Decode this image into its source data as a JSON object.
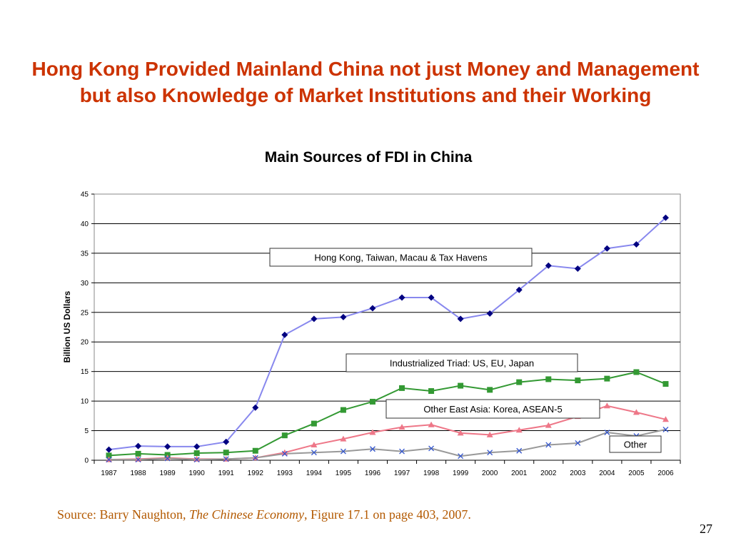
{
  "slide": {
    "title": "Hong Kong Provided Mainland China not just Money and Management but also Knowledge of Market Institutions and their Working",
    "source_prefix": "Source: Barry Naughton, ",
    "source_book": "The Chinese Economy",
    "source_suffix": ", Figure 17.1 on  page 403, 2007.",
    "page_number": "27"
  },
  "chart_data": {
    "type": "line",
    "title": "Main Sources of FDI in China",
    "xlabel": "",
    "ylabel": "Billion US Dollars",
    "ylim": [
      0,
      45
    ],
    "yticks": [
      0,
      5,
      10,
      15,
      20,
      25,
      30,
      35,
      40,
      45
    ],
    "grid": true,
    "legend": "none",
    "categories": [
      "1987",
      "1988",
      "1989",
      "1990",
      "1991",
      "1992",
      "1993",
      "1994",
      "1995",
      "1996",
      "1997",
      "1998",
      "1999",
      "2000",
      "2001",
      "2002",
      "2003",
      "2004",
      "2005",
      "2006"
    ],
    "series": [
      {
        "name": "Hong Kong, Taiwan, Macau & Tax Havens",
        "color": "#000080",
        "line_color": "#8888ee",
        "marker": "diamond",
        "values": [
          1.8,
          2.4,
          2.3,
          2.3,
          3.1,
          8.9,
          21.2,
          23.9,
          24.2,
          25.7,
          27.5,
          27.5,
          23.9,
          24.8,
          28.8,
          32.9,
          32.4,
          35.8,
          36.5,
          41.0
        ]
      },
      {
        "name": "Industrialized Triad: US, EU, Japan",
        "color": "#339933",
        "line_color": "#339933",
        "marker": "square",
        "values": [
          0.8,
          1.1,
          0.9,
          1.2,
          1.3,
          1.6,
          4.2,
          6.2,
          8.5,
          9.9,
          12.2,
          11.7,
          12.6,
          11.9,
          13.2,
          13.7,
          13.5,
          13.8,
          14.9,
          12.9
        ]
      },
      {
        "name": "Other East Asia: Korea, ASEAN-5",
        "color": "#ee7788",
        "line_color": "#ee7788",
        "marker": "triangle",
        "values": [
          0.1,
          0.2,
          0.4,
          0.2,
          0.2,
          0.4,
          1.3,
          2.6,
          3.6,
          4.7,
          5.6,
          6.0,
          4.6,
          4.3,
          5.1,
          5.9,
          7.4,
          9.2,
          8.1,
          6.9
        ]
      },
      {
        "name": "Other",
        "color": "#3355cc",
        "line_color": "#999999",
        "marker": "x",
        "values": [
          0.1,
          0.1,
          0.3,
          0.1,
          0.2,
          0.4,
          1.1,
          1.3,
          1.5,
          1.9,
          1.5,
          2.0,
          0.7,
          1.3,
          1.6,
          2.6,
          2.9,
          4.7,
          4.1,
          5.2
        ]
      }
    ]
  }
}
